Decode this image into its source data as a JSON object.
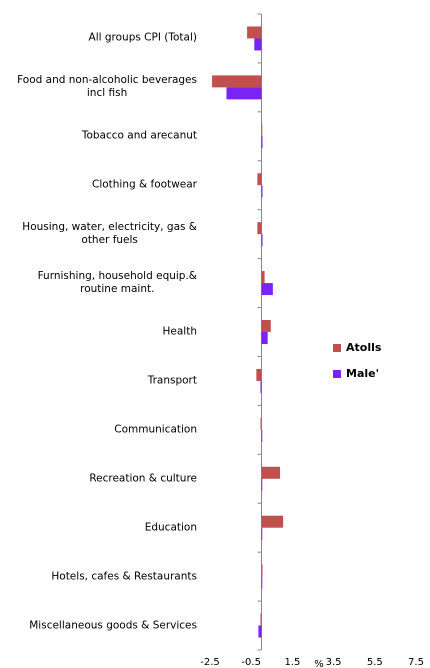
{
  "chart_data": {
    "type": "hbar",
    "categories": [
      "All groups CPI (Total)",
      "Food and non-alcoholic beverages\nincl fish",
      "Tobacco and arecanut",
      "Clothing & footwear",
      "Housing, water, electricity, gas &\nother fuels",
      "Furnishing, household equip.&\nroutine maint.",
      "Health",
      "Transport",
      "Communication",
      "Recreation & culture",
      "Education",
      "Hotels, cafes & Restaurants",
      "Miscellaneous goods & Services"
    ],
    "series": [
      {
        "name": "Atolls",
        "color": "#c0504d",
        "values": [
          -0.7,
          -2.4,
          0,
          -0.2,
          -0.2,
          0.15,
          0.45,
          -0.25,
          -0.05,
          0.9,
          1.05,
          0.05,
          -0.05
        ]
      },
      {
        "name": "Male'",
        "color": "#7b22f7",
        "values": [
          -0.35,
          -1.7,
          0.05,
          0.05,
          0.05,
          0.55,
          0.3,
          -0.05,
          0,
          0,
          0,
          0,
          -0.15
        ]
      }
    ],
    "x_label": "%",
    "xlim": [
      -2.5,
      7.5
    ],
    "xticks": [
      -2.5,
      -0.5,
      1.5,
      3.5,
      5.5,
      7.5
    ],
    "legend": "right"
  }
}
